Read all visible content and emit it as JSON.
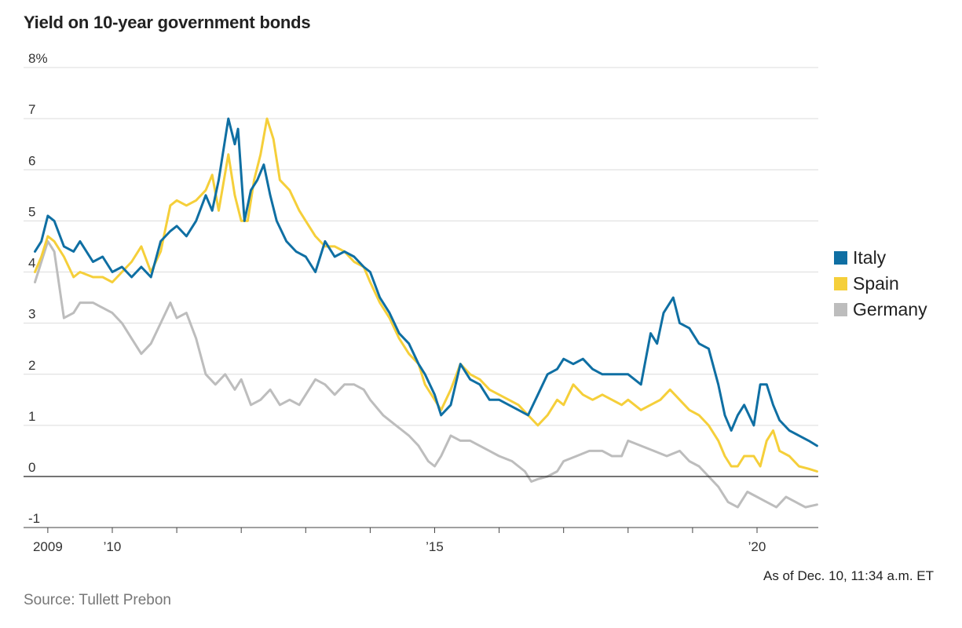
{
  "chart_data": {
    "type": "line",
    "title": "Yield on 10-year government bonds",
    "ylim": [
      -1.1,
      8
    ],
    "y_ticks": [
      {
        "value": 8,
        "label": "8%"
      },
      {
        "value": 7,
        "label": "7"
      },
      {
        "value": 6,
        "label": "6"
      },
      {
        "value": 5,
        "label": "5"
      },
      {
        "value": 4,
        "label": "4"
      },
      {
        "value": 3,
        "label": "3"
      },
      {
        "value": 2,
        "label": "2"
      },
      {
        "value": 1,
        "label": "1"
      },
      {
        "value": 0,
        "label": "0"
      },
      {
        "value": -1,
        "label": "-1"
      }
    ],
    "x_range": [
      2008.77,
      2020.95
    ],
    "x_tick_labels": [
      {
        "value": 2009.0,
        "label": "2009"
      },
      {
        "value": 2010.0,
        "label": "’10"
      },
      {
        "value": 2015.0,
        "label": "’15"
      },
      {
        "value": 2020.0,
        "label": "’20"
      }
    ],
    "x_minor_ticks": [
      2009.0,
      2010.0,
      2011.0,
      2012.0,
      2013.0,
      2014.0,
      2015.0,
      2016.0,
      2017.0,
      2018.0,
      2019.0,
      2020.0
    ],
    "series": [
      {
        "name": "Italy",
        "color": "#0f6fa3",
        "x": [
          2008.8,
          2008.9,
          2009.0,
          2009.1,
          2009.25,
          2009.4,
          2009.5,
          2009.7,
          2009.85,
          2010.0,
          2010.15,
          2010.3,
          2010.45,
          2010.6,
          2010.75,
          2010.9,
          2011.0,
          2011.15,
          2011.3,
          2011.45,
          2011.55,
          2011.65,
          2011.8,
          2011.9,
          2011.95,
          2012.05,
          2012.15,
          2012.25,
          2012.35,
          2012.45,
          2012.55,
          2012.7,
          2012.85,
          2013.0,
          2013.15,
          2013.3,
          2013.45,
          2013.6,
          2013.75,
          2013.9,
          2014.0,
          2014.15,
          2014.3,
          2014.45,
          2014.6,
          2014.75,
          2014.85,
          2015.0,
          2015.1,
          2015.25,
          2015.4,
          2015.55,
          2015.7,
          2015.85,
          2016.0,
          2016.15,
          2016.3,
          2016.45,
          2016.6,
          2016.75,
          2016.9,
          2017.0,
          2017.15,
          2017.3,
          2017.45,
          2017.6,
          2017.75,
          2017.9,
          2018.0,
          2018.2,
          2018.35,
          2018.45,
          2018.55,
          2018.7,
          2018.8,
          2018.95,
          2019.1,
          2019.25,
          2019.4,
          2019.5,
          2019.6,
          2019.7,
          2019.8,
          2019.95,
          2020.05,
          2020.15,
          2020.25,
          2020.35,
          2020.5,
          2020.65,
          2020.8,
          2020.93
        ],
        "y": [
          4.4,
          4.6,
          5.1,
          5.0,
          4.5,
          4.4,
          4.6,
          4.2,
          4.3,
          4.0,
          4.1,
          3.9,
          4.1,
          3.9,
          4.6,
          4.8,
          4.9,
          4.7,
          5.0,
          5.5,
          5.2,
          5.8,
          7.0,
          6.5,
          6.8,
          5.0,
          5.6,
          5.8,
          6.1,
          5.5,
          5.0,
          4.6,
          4.4,
          4.3,
          4.0,
          4.6,
          4.3,
          4.4,
          4.3,
          4.1,
          4.0,
          3.5,
          3.2,
          2.8,
          2.6,
          2.2,
          2.0,
          1.6,
          1.2,
          1.4,
          2.2,
          1.9,
          1.8,
          1.5,
          1.5,
          1.4,
          1.3,
          1.2,
          1.6,
          2.0,
          2.1,
          2.3,
          2.2,
          2.3,
          2.1,
          2.0,
          2.0,
          2.0,
          2.0,
          1.8,
          2.8,
          2.6,
          3.2,
          3.5,
          3.0,
          2.9,
          2.6,
          2.5,
          1.8,
          1.2,
          0.9,
          1.2,
          1.4,
          1.0,
          1.8,
          1.8,
          1.4,
          1.1,
          0.9,
          0.8,
          0.7,
          0.6
        ]
      },
      {
        "name": "Spain",
        "color": "#f5cf3a",
        "x": [
          2008.8,
          2008.9,
          2009.0,
          2009.1,
          2009.25,
          2009.4,
          2009.5,
          2009.7,
          2009.85,
          2010.0,
          2010.15,
          2010.3,
          2010.45,
          2010.6,
          2010.75,
          2010.9,
          2011.0,
          2011.15,
          2011.3,
          2011.45,
          2011.55,
          2011.65,
          2011.8,
          2011.9,
          2012.0,
          2012.1,
          2012.2,
          2012.3,
          2012.4,
          2012.5,
          2012.6,
          2012.75,
          2012.9,
          2013.0,
          2013.15,
          2013.3,
          2013.45,
          2013.6,
          2013.75,
          2013.9,
          2014.0,
          2014.15,
          2014.3,
          2014.45,
          2014.6,
          2014.75,
          2014.85,
          2015.0,
          2015.1,
          2015.25,
          2015.4,
          2015.55,
          2015.7,
          2015.85,
          2016.0,
          2016.15,
          2016.3,
          2016.45,
          2016.6,
          2016.75,
          2016.9,
          2017.0,
          2017.15,
          2017.3,
          2017.45,
          2017.6,
          2017.75,
          2017.9,
          2018.0,
          2018.2,
          2018.35,
          2018.5,
          2018.65,
          2018.8,
          2018.95,
          2019.1,
          2019.25,
          2019.4,
          2019.5,
          2019.6,
          2019.7,
          2019.8,
          2019.95,
          2020.05,
          2020.15,
          2020.25,
          2020.35,
          2020.5,
          2020.65,
          2020.8,
          2020.93
        ],
        "y": [
          4.0,
          4.3,
          4.7,
          4.6,
          4.3,
          3.9,
          4.0,
          3.9,
          3.9,
          3.8,
          4.0,
          4.2,
          4.5,
          4.0,
          4.4,
          5.3,
          5.4,
          5.3,
          5.4,
          5.6,
          5.9,
          5.2,
          6.3,
          5.5,
          5.0,
          5.0,
          5.8,
          6.3,
          7.0,
          6.6,
          5.8,
          5.6,
          5.2,
          5.0,
          4.7,
          4.5,
          4.5,
          4.4,
          4.2,
          4.1,
          3.8,
          3.4,
          3.1,
          2.7,
          2.4,
          2.2,
          1.8,
          1.5,
          1.3,
          1.7,
          2.2,
          2.0,
          1.9,
          1.7,
          1.6,
          1.5,
          1.4,
          1.2,
          1.0,
          1.2,
          1.5,
          1.4,
          1.8,
          1.6,
          1.5,
          1.6,
          1.5,
          1.4,
          1.5,
          1.3,
          1.4,
          1.5,
          1.7,
          1.5,
          1.3,
          1.2,
          1.0,
          0.7,
          0.4,
          0.2,
          0.2,
          0.4,
          0.4,
          0.2,
          0.7,
          0.9,
          0.5,
          0.4,
          0.2,
          0.15,
          0.1
        ]
      },
      {
        "name": "Germany",
        "color": "#bdbdbd",
        "x": [
          2008.8,
          2008.9,
          2009.0,
          2009.1,
          2009.25,
          2009.4,
          2009.5,
          2009.7,
          2009.85,
          2010.0,
          2010.15,
          2010.3,
          2010.45,
          2010.6,
          2010.75,
          2010.9,
          2011.0,
          2011.15,
          2011.3,
          2011.45,
          2011.6,
          2011.75,
          2011.9,
          2012.0,
          2012.15,
          2012.3,
          2012.45,
          2012.6,
          2012.75,
          2012.9,
          2013.0,
          2013.15,
          2013.3,
          2013.45,
          2013.6,
          2013.75,
          2013.9,
          2014.0,
          2014.2,
          2014.4,
          2014.6,
          2014.75,
          2014.9,
          2015.0,
          2015.1,
          2015.25,
          2015.4,
          2015.55,
          2015.7,
          2015.85,
          2016.0,
          2016.2,
          2016.4,
          2016.5,
          2016.6,
          2016.75,
          2016.9,
          2017.0,
          2017.2,
          2017.4,
          2017.6,
          2017.75,
          2017.9,
          2018.0,
          2018.2,
          2018.4,
          2018.6,
          2018.8,
          2018.95,
          2019.1,
          2019.25,
          2019.4,
          2019.55,
          2019.7,
          2019.85,
          2020.0,
          2020.15,
          2020.3,
          2020.45,
          2020.6,
          2020.75,
          2020.93
        ],
        "y": [
          3.8,
          4.2,
          4.6,
          4.4,
          3.1,
          3.2,
          3.4,
          3.4,
          3.3,
          3.2,
          3.0,
          2.7,
          2.4,
          2.6,
          3.0,
          3.4,
          3.1,
          3.2,
          2.7,
          2.0,
          1.8,
          2.0,
          1.7,
          1.9,
          1.4,
          1.5,
          1.7,
          1.4,
          1.5,
          1.4,
          1.6,
          1.9,
          1.8,
          1.6,
          1.8,
          1.8,
          1.7,
          1.5,
          1.2,
          1.0,
          0.8,
          0.6,
          0.3,
          0.2,
          0.4,
          0.8,
          0.7,
          0.7,
          0.6,
          0.5,
          0.4,
          0.3,
          0.1,
          -0.1,
          -0.05,
          0.0,
          0.1,
          0.3,
          0.4,
          0.5,
          0.5,
          0.4,
          0.4,
          0.7,
          0.6,
          0.5,
          0.4,
          0.5,
          0.3,
          0.2,
          0.0,
          -0.2,
          -0.5,
          -0.6,
          -0.3,
          -0.4,
          -0.5,
          -0.6,
          -0.4,
          -0.5,
          -0.6,
          -0.55
        ]
      }
    ]
  },
  "note": "As of Dec. 10, 11:34 a.m. ET",
  "source": "Source: Tullett Prebon"
}
